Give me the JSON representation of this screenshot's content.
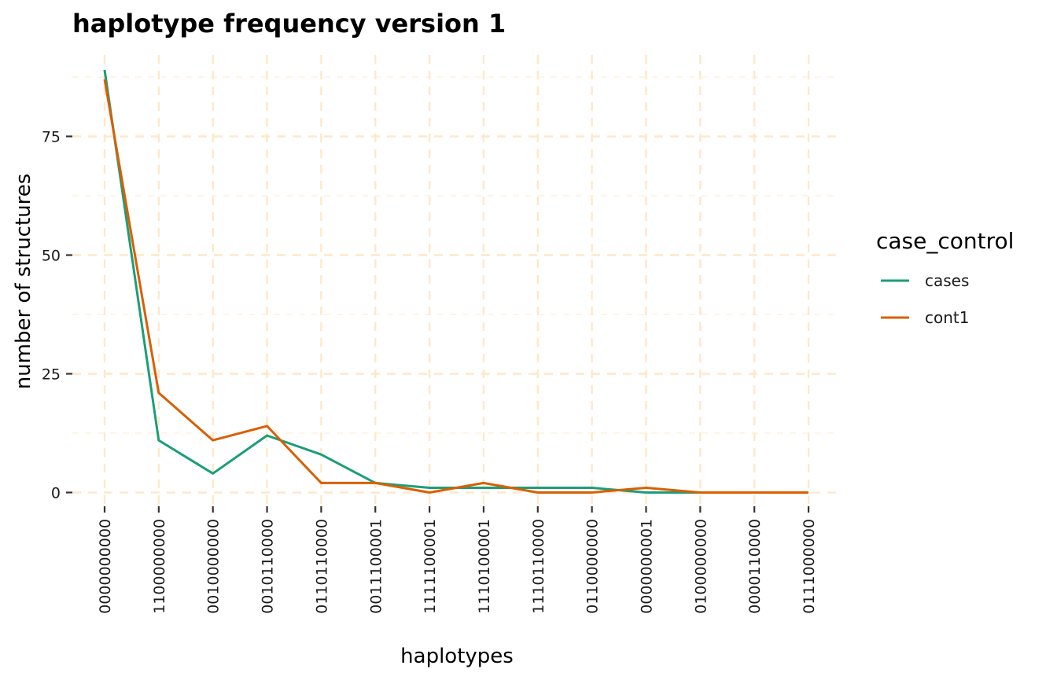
{
  "chart_data": {
    "type": "line",
    "title": "haplotype frequency version 1",
    "xlabel": "haplotypes",
    "ylabel": "number of structures",
    "categories": [
      "0000000000",
      "1100000000",
      "0010000000",
      "0010110000",
      "0110110000",
      "0011100001",
      "1111100001",
      "1110100001",
      "1110110000",
      "0110000000",
      "0000000001",
      "0100000000",
      "0000110000",
      "0111000000"
    ],
    "ylim": [
      0,
      90
    ],
    "yticks": [
      0,
      25,
      50,
      75
    ],
    "grid": true,
    "legend": {
      "title": "case_control",
      "position": "right"
    },
    "series": [
      {
        "name": "cases",
        "color": "#1b9e77",
        "values": [
          89,
          11,
          4,
          12,
          8,
          2,
          1,
          1,
          1,
          1,
          0,
          0,
          0,
          0
        ]
      },
      {
        "name": "cont1",
        "color": "#d95f02",
        "values": [
          87,
          21,
          11,
          14,
          2,
          2,
          0,
          2,
          0,
          0,
          1,
          0,
          0,
          0
        ]
      }
    ]
  }
}
